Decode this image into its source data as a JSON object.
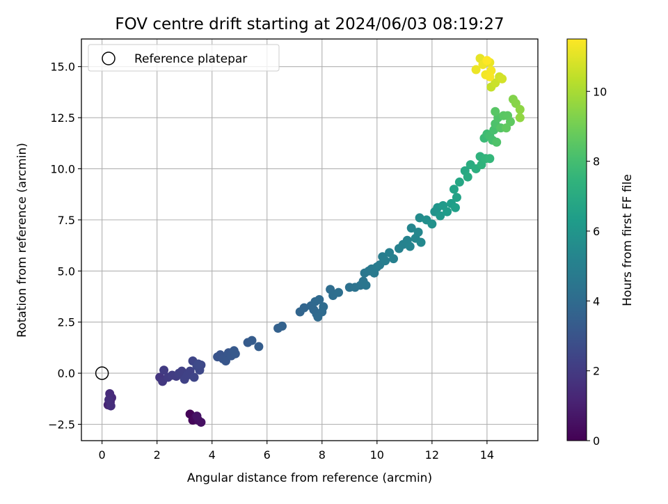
{
  "chart_data": {
    "type": "scatter",
    "title": "FOV centre drift starting at 2024/06/03 08:19:27",
    "xlabel": "Angular distance from reference (arcmin)",
    "ylabel": "Rotation from reference (arcmin)",
    "colorbar_label": "Hours from first FF file",
    "xlim": [
      -0.75,
      15.85
    ],
    "ylim": [
      -3.3,
      16.35
    ],
    "clim": [
      0,
      11.5
    ],
    "xticks": [
      0,
      2,
      4,
      6,
      8,
      10,
      12,
      14
    ],
    "yticks": [
      -2.5,
      0.0,
      2.5,
      5.0,
      7.5,
      10.0,
      12.5,
      15.0
    ],
    "cticks": [
      0,
      2,
      4,
      6,
      8,
      10
    ],
    "grid": true,
    "legend": {
      "position": "top-left",
      "entries": [
        "Reference platepar"
      ]
    },
    "colormap": [
      "#440154",
      "#482878",
      "#3e4989",
      "#31688e",
      "#26828e",
      "#1f9e89",
      "#35b779",
      "#6ece58",
      "#b5de2b",
      "#fde725"
    ],
    "reference_point": {
      "x": 0,
      "y": 0
    },
    "points": [
      [
        3.2,
        -2.0,
        0.1
      ],
      [
        3.3,
        -2.3,
        0.2
      ],
      [
        3.4,
        -2.15,
        0.3
      ],
      [
        3.5,
        -2.3,
        0.4
      ],
      [
        3.6,
        -2.4,
        0.5
      ],
      [
        3.45,
        -2.1,
        0.6
      ],
      [
        0.22,
        -1.55,
        1.1
      ],
      [
        0.3,
        -1.4,
        1.2
      ],
      [
        0.35,
        -1.2,
        1.3
      ],
      [
        0.28,
        -1.0,
        1.4
      ],
      [
        0.32,
        -1.6,
        1.5
      ],
      [
        0.25,
        -1.3,
        1.5
      ],
      [
        2.1,
        -0.2,
        1.8
      ],
      [
        2.2,
        -0.4,
        1.9
      ],
      [
        2.25,
        0.15,
        2.0
      ],
      [
        2.4,
        -0.2,
        2.0
      ],
      [
        2.55,
        -0.1,
        2.1
      ],
      [
        2.7,
        -0.15,
        2.1
      ],
      [
        2.8,
        0.0,
        2.2
      ],
      [
        2.9,
        0.1,
        2.2
      ],
      [
        3.0,
        -0.3,
        2.3
      ],
      [
        3.1,
        -0.1,
        2.3
      ],
      [
        3.2,
        0.1,
        2.3
      ],
      [
        3.3,
        0.6,
        2.4
      ],
      [
        3.35,
        -0.2,
        2.4
      ],
      [
        3.45,
        0.35,
        2.5
      ],
      [
        3.55,
        0.15,
        2.5
      ],
      [
        3.6,
        0.4,
        2.5
      ],
      [
        3.5,
        0.45,
        2.6
      ],
      [
        4.2,
        0.8,
        3.0
      ],
      [
        4.3,
        0.9,
        3.0
      ],
      [
        4.4,
        0.7,
        3.05
      ],
      [
        4.5,
        0.6,
        3.1
      ],
      [
        4.6,
        1.0,
        3.1
      ],
      [
        4.7,
        0.85,
        3.15
      ],
      [
        4.8,
        1.1,
        3.2
      ],
      [
        4.85,
        0.95,
        3.2
      ],
      [
        5.3,
        1.5,
        3.3
      ],
      [
        5.45,
        1.6,
        3.35
      ],
      [
        5.7,
        1.3,
        3.4
      ],
      [
        6.4,
        2.2,
        3.55
      ],
      [
        6.55,
        2.3,
        3.6
      ],
      [
        7.2,
        3.0,
        3.7
      ],
      [
        7.35,
        3.2,
        3.75
      ],
      [
        7.6,
        3.3,
        3.8
      ],
      [
        7.7,
        3.1,
        3.85
      ],
      [
        7.8,
        2.9,
        3.9
      ],
      [
        7.75,
        3.5,
        3.9
      ],
      [
        7.9,
        3.6,
        3.95
      ],
      [
        8.0,
        3.0,
        4.0
      ],
      [
        7.85,
        2.75,
        4.0
      ],
      [
        8.05,
        3.25,
        4.05
      ],
      [
        8.3,
        4.1,
        4.1
      ],
      [
        8.4,
        3.8,
        4.15
      ],
      [
        8.6,
        3.95,
        4.2
      ],
      [
        9.0,
        4.2,
        4.3
      ],
      [
        9.2,
        4.2,
        4.35
      ],
      [
        9.4,
        4.3,
        4.4
      ],
      [
        9.5,
        4.5,
        4.45
      ],
      [
        9.6,
        4.3,
        4.5
      ],
      [
        9.55,
        4.9,
        4.55
      ],
      [
        9.7,
        5.0,
        4.6
      ],
      [
        9.8,
        5.1,
        4.65
      ],
      [
        9.9,
        4.9,
        4.7
      ],
      [
        10.0,
        5.2,
        4.75
      ],
      [
        10.1,
        5.3,
        4.8
      ],
      [
        10.2,
        5.7,
        4.85
      ],
      [
        10.3,
        5.5,
        4.9
      ],
      [
        10.45,
        5.9,
        4.95
      ],
      [
        10.6,
        5.6,
        5.0
      ],
      [
        10.8,
        6.1,
        5.05
      ],
      [
        10.95,
        6.3,
        5.1
      ],
      [
        11.1,
        6.5,
        5.15
      ],
      [
        11.2,
        6.2,
        5.2
      ],
      [
        11.25,
        7.1,
        5.25
      ],
      [
        11.4,
        6.6,
        5.3
      ],
      [
        11.5,
        6.9,
        5.35
      ],
      [
        11.6,
        6.4,
        5.4
      ],
      [
        11.55,
        7.6,
        5.5
      ],
      [
        11.8,
        7.5,
        5.7
      ],
      [
        12.0,
        7.3,
        5.8
      ],
      [
        12.1,
        7.9,
        5.9
      ],
      [
        12.2,
        8.1,
        6.0
      ],
      [
        12.3,
        7.7,
        6.1
      ],
      [
        12.4,
        8.2,
        6.2
      ],
      [
        12.55,
        7.9,
        6.3
      ],
      [
        12.7,
        8.3,
        6.4
      ],
      [
        12.85,
        8.1,
        6.5
      ],
      [
        12.9,
        8.6,
        6.6
      ],
      [
        12.8,
        9.0,
        6.65
      ],
      [
        13.0,
        9.35,
        6.8
      ],
      [
        13.2,
        9.9,
        6.9
      ],
      [
        13.3,
        9.6,
        7.0
      ],
      [
        13.4,
        10.2,
        7.1
      ],
      [
        13.6,
        10.0,
        7.2
      ],
      [
        13.75,
        10.6,
        7.35
      ],
      [
        13.8,
        10.2,
        7.4
      ],
      [
        13.95,
        10.5,
        7.5
      ],
      [
        14.1,
        10.5,
        7.6
      ],
      [
        13.9,
        11.5,
        7.8
      ],
      [
        14.0,
        11.7,
        7.9
      ],
      [
        14.1,
        11.6,
        8.0
      ],
      [
        14.2,
        11.4,
        8.05
      ],
      [
        14.25,
        11.9,
        8.1
      ],
      [
        14.3,
        12.2,
        8.2
      ],
      [
        14.35,
        11.3,
        8.25
      ],
      [
        14.4,
        12.5,
        8.3
      ],
      [
        14.5,
        12.0,
        8.4
      ],
      [
        14.3,
        12.8,
        8.45
      ],
      [
        14.6,
        12.6,
        8.5
      ],
      [
        14.75,
        12.6,
        8.55
      ],
      [
        14.85,
        12.3,
        8.6
      ],
      [
        14.7,
        12.0,
        8.65
      ],
      [
        14.95,
        13.4,
        9.3
      ],
      [
        15.05,
        13.2,
        9.4
      ],
      [
        15.2,
        12.9,
        9.5
      ],
      [
        15.2,
        12.5,
        9.55
      ],
      [
        14.15,
        14.0,
        10.5
      ],
      [
        14.3,
        14.2,
        10.6
      ],
      [
        14.45,
        14.5,
        10.7
      ],
      [
        14.55,
        14.4,
        10.75
      ],
      [
        13.75,
        15.4,
        11.1
      ],
      [
        14.1,
        15.2,
        11.15
      ],
      [
        13.6,
        14.85,
        11.2
      ],
      [
        13.85,
        15.1,
        11.25
      ],
      [
        13.95,
        14.6,
        11.3
      ],
      [
        14.15,
        14.8,
        11.35
      ],
      [
        14.1,
        14.5,
        11.4
      ],
      [
        14.0,
        15.3,
        11.5
      ]
    ]
  }
}
